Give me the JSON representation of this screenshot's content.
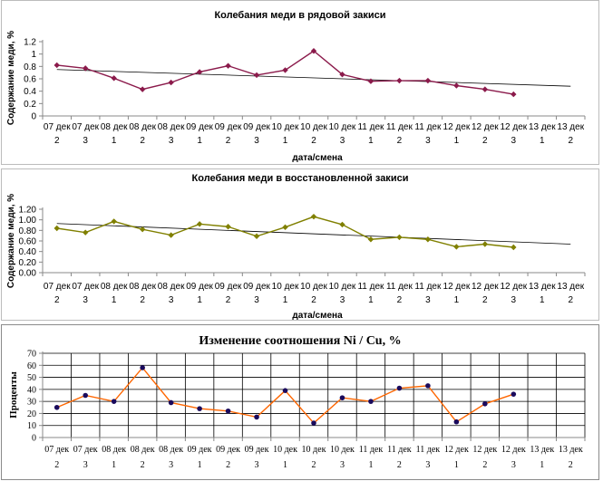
{
  "chart_data": [
    {
      "type": "line",
      "title": "Колебания меди в рядовой закиси",
      "xlabel": "дата/смена",
      "ylabel": "Содержание меди, %",
      "categories": [
        [
          "07 дек",
          "2"
        ],
        [
          "07 дек",
          "3"
        ],
        [
          "08 дек",
          "1"
        ],
        [
          "08 дек",
          "2"
        ],
        [
          "08 дек",
          "3"
        ],
        [
          "09 дек",
          "1"
        ],
        [
          "09 дек",
          "2"
        ],
        [
          "09 дек",
          "3"
        ],
        [
          "10 дек",
          "1"
        ],
        [
          "10 дек",
          "2"
        ],
        [
          "10 дек",
          "3"
        ],
        [
          "11 дек",
          "1"
        ],
        [
          "11 дек",
          "2"
        ],
        [
          "11 дек",
          "3"
        ],
        [
          "12 дек",
          "1"
        ],
        [
          "12 дек",
          "2"
        ],
        [
          "12 дек",
          "3"
        ],
        [
          "13 дек",
          "1"
        ],
        [
          "13 дек",
          "2"
        ]
      ],
      "series": [
        {
          "values": [
            0.82,
            0.77,
            0.61,
            0.43,
            0.54,
            0.71,
            0.81,
            0.66,
            0.74,
            1.05,
            0.67,
            0.56,
            0.57,
            0.57,
            0.49,
            0.43,
            0.35,
            null,
            null
          ]
        }
      ],
      "trendline": [
        0.75,
        0.48
      ],
      "ylim": [
        0,
        1.2
      ],
      "ytick_step": 0.2,
      "ytick_labels": [
        "0",
        "0.2",
        "0.4",
        "0.6",
        "0.8",
        "1",
        "1.2"
      ],
      "grid": false,
      "colors": {
        "line": "#8b1a4b",
        "marker": "#8b1a4b",
        "trend": "#000000"
      }
    },
    {
      "type": "line",
      "title": "Колебания меди в восстановленной закиси",
      "xlabel": "дата/смена",
      "ylabel": "Содержание меди, %",
      "categories": [
        [
          "07 дек",
          "2"
        ],
        [
          "07 дек",
          "3"
        ],
        [
          "08 дек",
          "1"
        ],
        [
          "08 дек",
          "2"
        ],
        [
          "08 дек",
          "3"
        ],
        [
          "09 дек",
          "1"
        ],
        [
          "09 дек",
          "2"
        ],
        [
          "09 дек",
          "3"
        ],
        [
          "10 дек",
          "1"
        ],
        [
          "10 дек",
          "2"
        ],
        [
          "10 дек",
          "3"
        ],
        [
          "11 дек",
          "1"
        ],
        [
          "11 дек",
          "2"
        ],
        [
          "11 дек",
          "3"
        ],
        [
          "12 дек",
          "1"
        ],
        [
          "12 дек",
          "2"
        ],
        [
          "12 дек",
          "3"
        ],
        [
          "13 дек",
          "1"
        ],
        [
          "13 дек",
          "2"
        ]
      ],
      "series": [
        {
          "values": [
            0.84,
            0.76,
            0.97,
            0.82,
            0.71,
            0.92,
            0.87,
            0.69,
            0.86,
            1.06,
            0.91,
            0.63,
            0.67,
            0.63,
            0.49,
            0.54,
            0.48,
            null,
            null
          ]
        }
      ],
      "trendline": [
        0.93,
        0.54
      ],
      "ylim": [
        0,
        1.2
      ],
      "ytick_step": 0.2,
      "ytick_labels": [
        "0.00",
        "0.20",
        "0.40",
        "0.60",
        "0.80",
        "1.00",
        "1.20"
      ],
      "grid": false,
      "colors": {
        "line": "#808000",
        "marker": "#808000",
        "trend": "#000000"
      }
    },
    {
      "type": "line",
      "title": "Изменение соотношения  Ni / Cu, %",
      "xlabel": "",
      "ylabel": "Проценты",
      "categories": [
        [
          "07 дек",
          "2"
        ],
        [
          "07 дек",
          "3"
        ],
        [
          "08 дек",
          "1"
        ],
        [
          "08 дек",
          "2"
        ],
        [
          "08 дек",
          "3"
        ],
        [
          "09 дек",
          "1"
        ],
        [
          "09 дек",
          "2"
        ],
        [
          "09 дек",
          "3"
        ],
        [
          "10 дек",
          "1"
        ],
        [
          "10 дек",
          "2"
        ],
        [
          "10 дек",
          "3"
        ],
        [
          "11 дек",
          "1"
        ],
        [
          "11 дек",
          "2"
        ],
        [
          "11 дек",
          "3"
        ],
        [
          "12 дек",
          "1"
        ],
        [
          "12 дек",
          "2"
        ],
        [
          "12 дек",
          "3"
        ],
        [
          "13 дек",
          "1"
        ],
        [
          "13 дек",
          "2"
        ]
      ],
      "series": [
        {
          "values": [
            25,
            35,
            30,
            58,
            29,
            24,
            22,
            17,
            39,
            12,
            33,
            30,
            41,
            43,
            13,
            28,
            36,
            null,
            null
          ]
        }
      ],
      "ylim": [
        0,
        70
      ],
      "ytick_step": 10,
      "ytick_labels": [
        "0",
        "10",
        "20",
        "30",
        "40",
        "50",
        "60",
        "70"
      ],
      "grid": true,
      "colors": {
        "line": "#ff6600",
        "marker": "#1a0a5c",
        "grid": "#000000"
      }
    }
  ]
}
